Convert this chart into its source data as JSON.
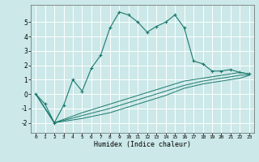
{
  "xlabel": "Humidex (Indice chaleur)",
  "background_color": "#cce8e8",
  "grid_color": "#ffffff",
  "line_color": "#1a7a6e",
  "xlim": [
    -0.5,
    23.5
  ],
  "ylim": [
    -2.7,
    6.2
  ],
  "yticks": [
    -2,
    -1,
    0,
    1,
    2,
    3,
    4,
    5
  ],
  "xticks": [
    0,
    1,
    2,
    3,
    4,
    5,
    6,
    7,
    8,
    9,
    10,
    11,
    12,
    13,
    14,
    15,
    16,
    17,
    18,
    19,
    20,
    21,
    22,
    23
  ],
  "main_line_x": [
    0,
    1,
    2,
    3,
    4,
    5,
    6,
    7,
    8,
    9,
    10,
    11,
    12,
    13,
    14,
    15,
    16,
    17,
    18,
    19,
    20,
    21,
    22,
    23
  ],
  "main_line_y": [
    0.0,
    -0.7,
    -2.0,
    -0.8,
    1.0,
    0.2,
    1.8,
    2.7,
    4.6,
    5.7,
    5.5,
    5.0,
    4.3,
    4.7,
    5.0,
    5.5,
    4.6,
    2.3,
    2.1,
    1.6,
    1.6,
    1.7,
    1.5,
    1.4
  ],
  "lower_line1_x": [
    0,
    2,
    5,
    8,
    10,
    12,
    14,
    16,
    18,
    20,
    22,
    23
  ],
  "lower_line1_y": [
    0.0,
    -2.0,
    -1.3,
    -0.7,
    -0.3,
    0.1,
    0.5,
    0.9,
    1.1,
    1.3,
    1.5,
    1.4
  ],
  "lower_line2_x": [
    0,
    2,
    5,
    8,
    10,
    12,
    14,
    16,
    18,
    20,
    22,
    23
  ],
  "lower_line2_y": [
    0.0,
    -2.0,
    -1.5,
    -1.0,
    -0.6,
    -0.2,
    0.2,
    0.6,
    0.9,
    1.1,
    1.3,
    1.35
  ],
  "lower_line3_x": [
    0,
    2,
    5,
    8,
    10,
    12,
    14,
    16,
    18,
    20,
    22,
    23
  ],
  "lower_line3_y": [
    0.0,
    -2.0,
    -1.7,
    -1.3,
    -0.9,
    -0.5,
    -0.1,
    0.4,
    0.7,
    0.9,
    1.1,
    1.3
  ]
}
